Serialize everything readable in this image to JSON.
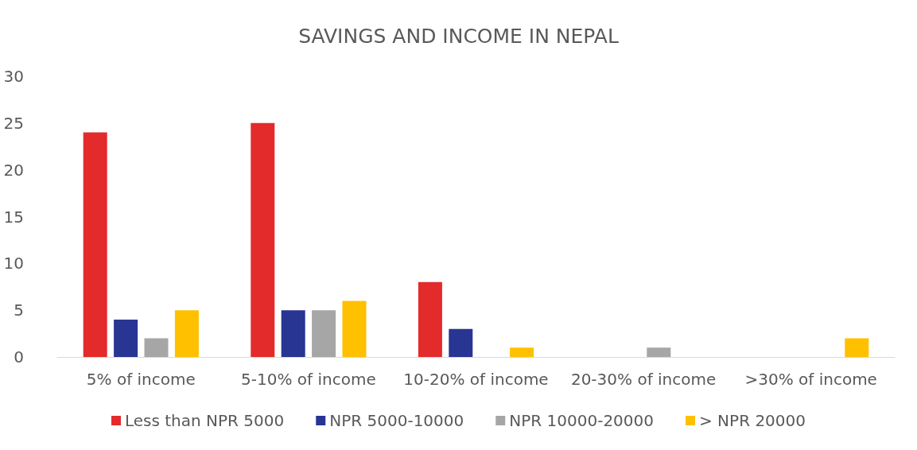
{
  "chart_data": {
    "type": "bar",
    "title": "SAVINGS AND INCOME IN NEPAL",
    "categories": [
      "5% of income",
      "5-10% of income",
      "10-20% of income",
      "20-30% of income",
      ">30% of income"
    ],
    "series": [
      {
        "name": "Less than NPR 5000",
        "color": "#e32b2b",
        "values": [
          24,
          25,
          8,
          0,
          0
        ]
      },
      {
        "name": "NPR 5000-10000",
        "color": "#283593",
        "values": [
          4,
          5,
          3,
          0,
          0
        ]
      },
      {
        "name": "NPR 10000-20000",
        "color": "#a6a6a6",
        "values": [
          2,
          5,
          0,
          1,
          0
        ]
      },
      {
        "name": "> NPR 20000",
        "color": "#ffc000",
        "values": [
          5,
          6,
          1,
          0,
          2
        ]
      }
    ],
    "ylim": [
      0,
      30
    ],
    "yticks": [
      0,
      5,
      10,
      15,
      20,
      25,
      30
    ],
    "grid": false,
    "legend": "bottom"
  }
}
